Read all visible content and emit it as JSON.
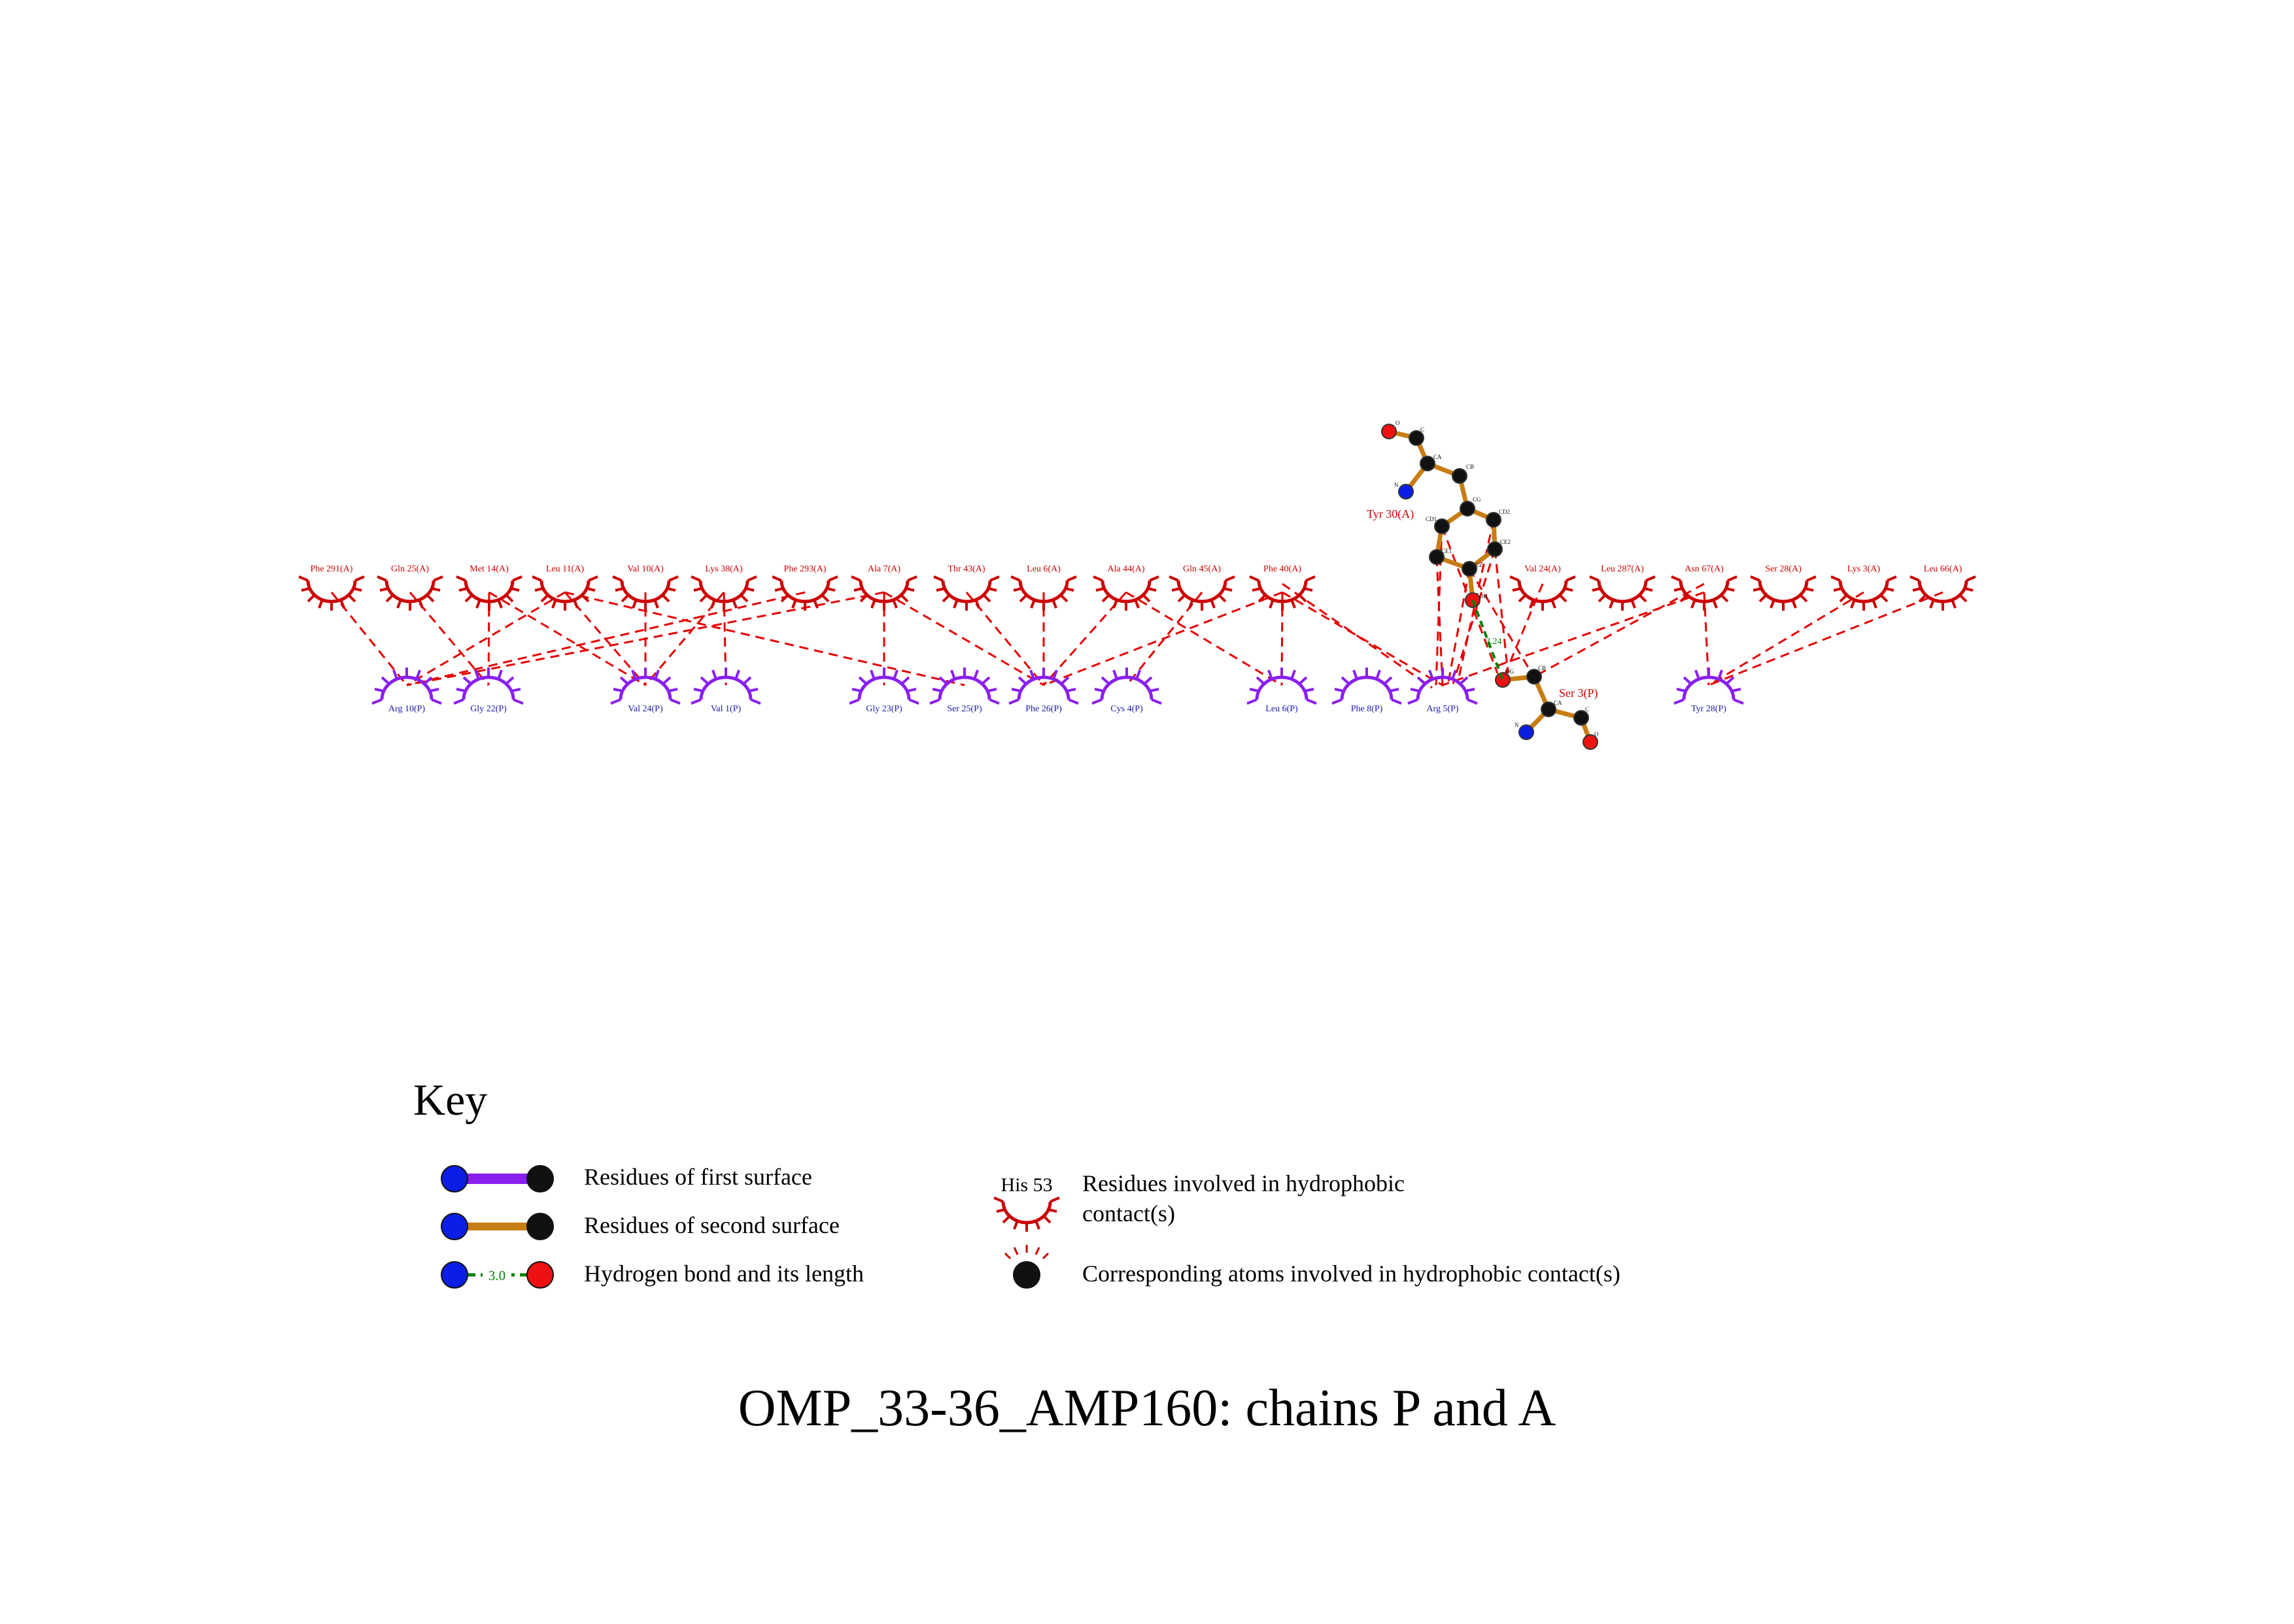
{
  "title": "OMP_33-36_AMP160: chains P and A",
  "colors": {
    "chain_a": "#cc0000",
    "chain_p": "#8a1ff0",
    "contact_line": "#e60000",
    "hbond": "#008000",
    "bond_second": "#c87d12",
    "atom_c": "#111111",
    "atom_n": "#0a1ee6",
    "atom_o": "#ee1111"
  },
  "chain_a_residues": [
    {
      "label": "Phe 291(A)"
    },
    {
      "label": "Gln 25(A)"
    },
    {
      "label": "Met 14(A)"
    },
    {
      "label": "Leu 11(A)"
    },
    {
      "label": "Val 10(A)"
    },
    {
      "label": "Lys 38(A)"
    },
    {
      "label": "Phe 293(A)"
    },
    {
      "label": "Ala 7(A)"
    },
    {
      "label": "Thr 43(A)"
    },
    {
      "label": "Leu 6(A)"
    },
    {
      "label": "Ala 44(A)"
    },
    {
      "label": "Gln 45(A)"
    },
    {
      "label": "Phe 40(A)"
    },
    {
      "label": "Val 24(A)"
    },
    {
      "label": "Leu 287(A)"
    },
    {
      "label": "Asn 67(A)"
    },
    {
      "label": "Ser 28(A)"
    },
    {
      "label": "Lys 3(A)"
    },
    {
      "label": "Leu 66(A)"
    }
  ],
  "chain_p_residues": [
    {
      "label": "Arg 10(P)"
    },
    {
      "label": "Gly 22(P)"
    },
    {
      "label": "Val 24(P)"
    },
    {
      "label": "Val 1(P)"
    },
    {
      "label": "Gly 23(P)"
    },
    {
      "label": "Ser 25(P)"
    },
    {
      "label": "Phe 26(P)"
    },
    {
      "label": "Cys 4(P)"
    },
    {
      "label": "Leu 6(P)"
    },
    {
      "label": "Phe 8(P)"
    },
    {
      "label": "Arg 5(P)"
    },
    {
      "label": "Tyr 28(P)"
    }
  ],
  "ligand_a": {
    "name": "Tyr 30(A)",
    "atom_labels": [
      "O",
      "C",
      "CA",
      "N",
      "CB",
      "CG",
      "CD1",
      "CD2",
      "CE1",
      "CE2",
      "CZ",
      "OH"
    ]
  },
  "ligand_p": {
    "name": "Ser 3(P)",
    "atom_labels": [
      "OG",
      "CB",
      "CA",
      "N",
      "C",
      "O"
    ]
  },
  "hbond_length": "3.24",
  "key": {
    "title": "Key",
    "first_surface": "Residues of first surface",
    "second_surface": "Residues of second surface",
    "hbond": "Hydrogen bond and its length",
    "hbond_example": "3.0",
    "hydrophobic_example": "His 53",
    "hydrophobic_line1": "Residues involved in hydrophobic",
    "hydrophobic_line2": "contact(s)",
    "corresponding_atoms": "Corresponding atoms involved in hydrophobic contact(s)"
  }
}
